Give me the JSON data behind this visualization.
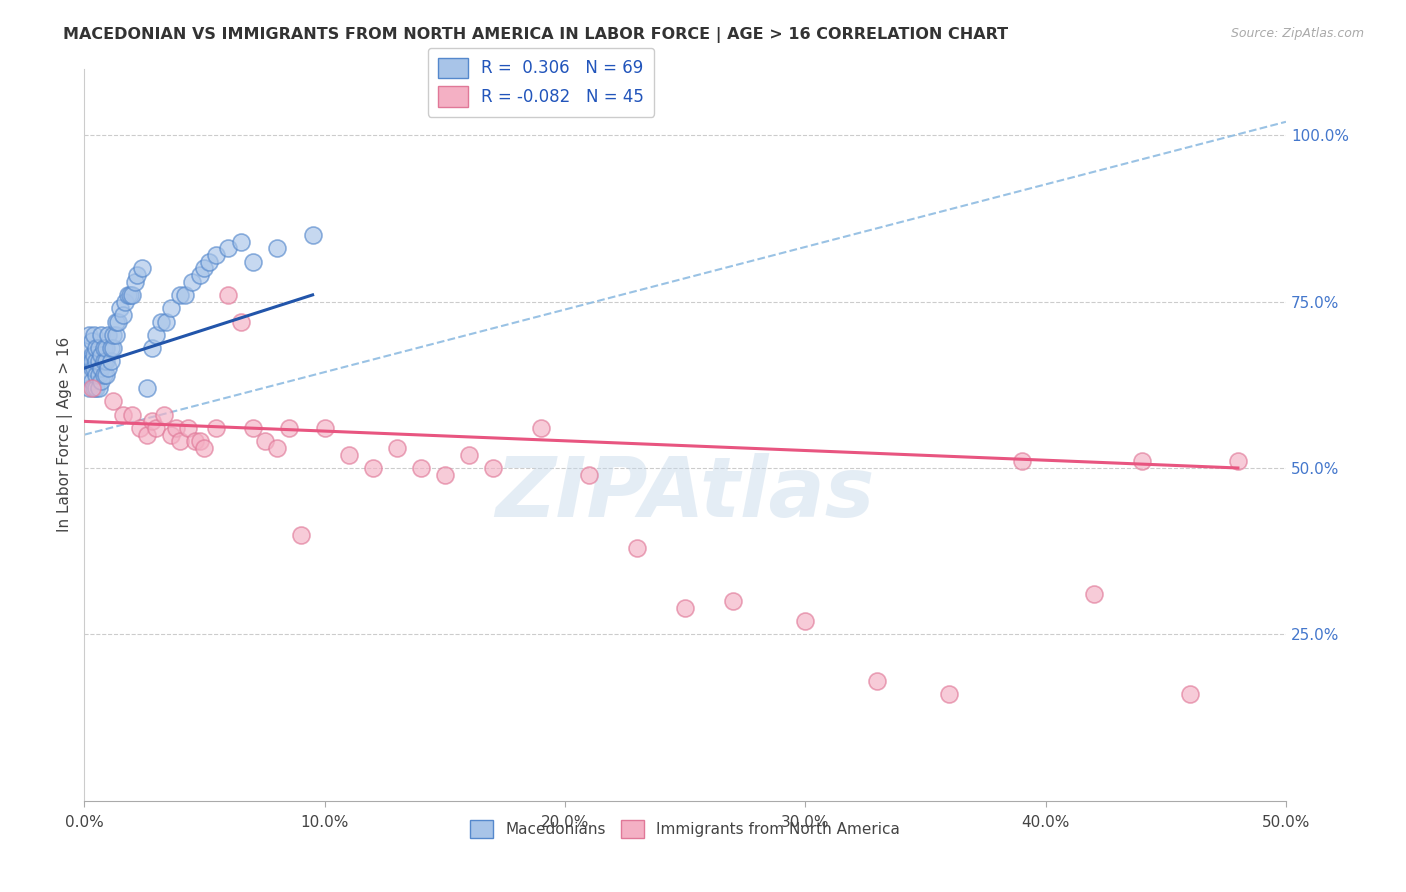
{
  "title": "MACEDONIAN VS IMMIGRANTS FROM NORTH AMERICA IN LABOR FORCE | AGE > 16 CORRELATION CHART",
  "source": "Source: ZipAtlas.com",
  "ylabel": "In Labor Force | Age > 16",
  "right_ytick_labels": [
    "100.0%",
    "75.0%",
    "50.0%",
    "25.0%"
  ],
  "right_ytick_values": [
    1.0,
    0.75,
    0.5,
    0.25
  ],
  "xlim": [
    0.0,
    0.5
  ],
  "ylim": [
    0.0,
    1.1
  ],
  "xtick_labels": [
    "0.0%",
    "10.0%",
    "20.0%",
    "30.0%",
    "40.0%",
    "50.0%"
  ],
  "xtick_values": [
    0.0,
    0.1,
    0.2,
    0.3,
    0.4,
    0.5
  ],
  "blue_color": "#a8c4e8",
  "blue_edge_color": "#5588cc",
  "pink_color": "#f4b0c4",
  "pink_edge_color": "#e07898",
  "blue_line_color": "#2255aa",
  "pink_line_color": "#e85580",
  "dashed_line_color": "#88b8e0",
  "watermark": "ZIPAtlas",
  "watermark_color": "#c5d8ea",
  "blue_scatter_x": [
    0.001,
    0.001,
    0.002,
    0.002,
    0.002,
    0.002,
    0.003,
    0.003,
    0.003,
    0.003,
    0.003,
    0.004,
    0.004,
    0.004,
    0.004,
    0.005,
    0.005,
    0.005,
    0.005,
    0.006,
    0.006,
    0.006,
    0.006,
    0.007,
    0.007,
    0.007,
    0.007,
    0.008,
    0.008,
    0.008,
    0.009,
    0.009,
    0.009,
    0.01,
    0.01,
    0.011,
    0.011,
    0.012,
    0.012,
    0.013,
    0.013,
    0.014,
    0.015,
    0.016,
    0.017,
    0.018,
    0.019,
    0.02,
    0.021,
    0.022,
    0.024,
    0.026,
    0.028,
    0.03,
    0.032,
    0.034,
    0.036,
    0.04,
    0.042,
    0.045,
    0.048,
    0.05,
    0.052,
    0.055,
    0.06,
    0.065,
    0.07,
    0.08,
    0.095
  ],
  "blue_scatter_y": [
    0.66,
    0.66,
    0.62,
    0.64,
    0.68,
    0.7,
    0.63,
    0.65,
    0.67,
    0.66,
    0.69,
    0.62,
    0.65,
    0.67,
    0.7,
    0.62,
    0.64,
    0.66,
    0.68,
    0.62,
    0.64,
    0.66,
    0.68,
    0.63,
    0.65,
    0.67,
    0.7,
    0.64,
    0.66,
    0.68,
    0.64,
    0.66,
    0.68,
    0.65,
    0.7,
    0.66,
    0.68,
    0.68,
    0.7,
    0.7,
    0.72,
    0.72,
    0.74,
    0.73,
    0.75,
    0.76,
    0.76,
    0.76,
    0.78,
    0.79,
    0.8,
    0.62,
    0.68,
    0.7,
    0.72,
    0.72,
    0.74,
    0.76,
    0.76,
    0.78,
    0.79,
    0.8,
    0.81,
    0.82,
    0.83,
    0.84,
    0.81,
    0.83,
    0.85
  ],
  "pink_scatter_x": [
    0.003,
    0.012,
    0.016,
    0.02,
    0.023,
    0.026,
    0.028,
    0.03,
    0.033,
    0.036,
    0.038,
    0.04,
    0.043,
    0.046,
    0.048,
    0.05,
    0.055,
    0.06,
    0.065,
    0.07,
    0.075,
    0.08,
    0.085,
    0.09,
    0.1,
    0.11,
    0.12,
    0.13,
    0.14,
    0.15,
    0.16,
    0.17,
    0.19,
    0.21,
    0.23,
    0.25,
    0.27,
    0.3,
    0.33,
    0.36,
    0.39,
    0.42,
    0.44,
    0.46,
    0.48
  ],
  "pink_scatter_y": [
    0.62,
    0.6,
    0.58,
    0.58,
    0.56,
    0.55,
    0.57,
    0.56,
    0.58,
    0.55,
    0.56,
    0.54,
    0.56,
    0.54,
    0.54,
    0.53,
    0.56,
    0.76,
    0.72,
    0.56,
    0.54,
    0.53,
    0.56,
    0.4,
    0.56,
    0.52,
    0.5,
    0.53,
    0.5,
    0.49,
    0.52,
    0.5,
    0.56,
    0.49,
    0.38,
    0.29,
    0.3,
    0.27,
    0.18,
    0.16,
    0.51,
    0.31,
    0.51,
    0.16,
    0.51
  ],
  "blue_trend_x": [
    0.0,
    0.095
  ],
  "blue_trend_y": [
    0.65,
    0.76
  ],
  "pink_trend_x": [
    0.0,
    0.48
  ],
  "pink_trend_y": [
    0.57,
    0.5
  ],
  "dashed_trend_x": [
    0.0,
    0.5
  ],
  "dashed_trend_y": [
    0.55,
    1.02
  ]
}
